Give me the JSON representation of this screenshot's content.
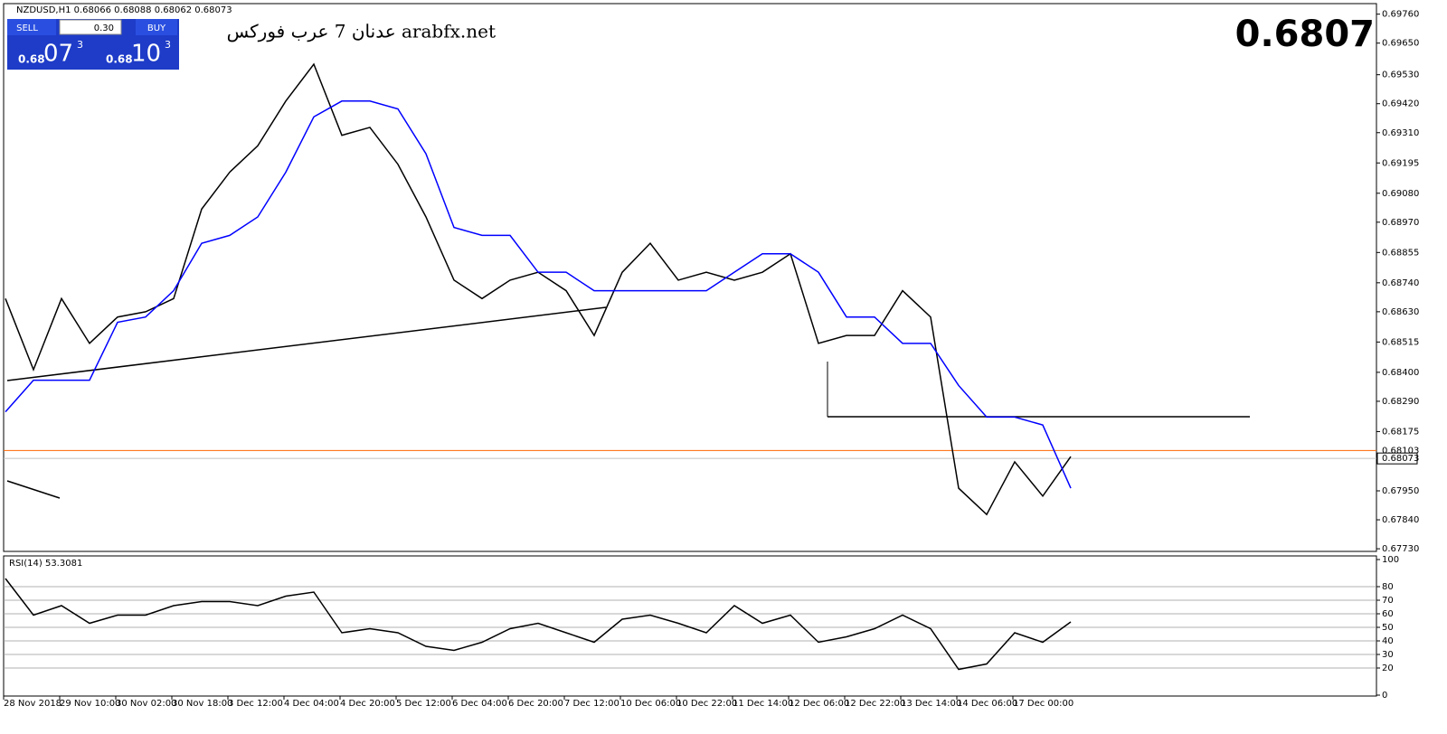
{
  "header": {
    "symbol_info": "NZDUSD,H1  0.68066 0.68088 0.68062 0.68073"
  },
  "trade_panel": {
    "sell": "SELL",
    "lot": "0.30",
    "buy": "BUY",
    "sell_prefix": "0.68",
    "sell_big": "07",
    "sell_sup": "3",
    "buy_prefix": "0.68",
    "buy_big": "10",
    "buy_sup": "3"
  },
  "watermark": "عدنان 7 عرب فوركس arabfx.net",
  "big_price": "0.6807",
  "chart_data": [
    {
      "type": "line",
      "categories": [
        "28 Nov 2018",
        null,
        "29 Nov 10:00",
        null,
        "30 Nov 02:00",
        null,
        "30 Nov 18:00",
        null,
        "3 Dec 12:00",
        null,
        "4 Dec 04:00",
        null,
        "4 Dec 20:00",
        null,
        "5 Dec 12:00",
        null,
        "6 Dec 04:00",
        null,
        "6 Dec 20:00",
        null,
        "7 Dec 12:00",
        null,
        "10 Dec 06:00",
        null,
        "10 Dec 22:00",
        null,
        "11 Dec 14:00",
        null,
        "12 Dec 06:00",
        null,
        "12 Dec 22:00",
        null,
        "13 Dec 14:00",
        null,
        "14 Dec 06:00",
        null,
        "17 Dec 00:00",
        null,
        null
      ],
      "series": [
        {
          "color": "#000000",
          "values": [
            0.6868,
            0.6841,
            0.6868,
            0.6851,
            0.6861,
            0.6863,
            0.6868,
            0.6902,
            0.6916,
            0.6926,
            0.6943,
            0.6957,
            0.693,
            0.6933,
            0.6919,
            0.6899,
            0.6875,
            0.6868,
            0.6875,
            0.6878,
            0.6871,
            0.6854,
            0.6878,
            0.6889,
            0.6875,
            0.6878,
            0.6875,
            0.6878,
            0.6885,
            0.6851,
            0.6854,
            0.6854,
            0.6871,
            0.6861,
            0.6796,
            0.6786,
            0.6806,
            0.6793,
            0.6808
          ]
        },
        {
          "color": "#0000ff",
          "values": [
            0.6825,
            0.6837,
            0.6837,
            0.6837,
            0.6859,
            0.6861,
            0.6871,
            0.6889,
            0.6892,
            0.6899,
            0.6916,
            0.6937,
            0.6943,
            0.6943,
            0.694,
            0.6923,
            0.6895,
            0.6892,
            0.6892,
            0.6878,
            0.6878,
            0.6871,
            0.6871,
            0.6871,
            0.6871,
            0.6871,
            0.6878,
            0.6885,
            0.6885,
            0.6878,
            0.6861,
            0.6861,
            0.6851,
            0.6851,
            0.6835,
            0.6823,
            0.6823,
            0.682,
            0.6796
          ]
        }
      ],
      "ylim": [
        0.6772,
        0.698
      ],
      "yticks": [
        {
          "value": 0.6976,
          "label": "0.69760"
        },
        {
          "value": 0.6965,
          "label": "0.69650"
        },
        {
          "value": 0.6953,
          "label": "0.69530"
        },
        {
          "value": 0.6942,
          "label": "0.69420"
        },
        {
          "value": 0.6931,
          "label": "0.69310"
        },
        {
          "value": 0.69195,
          "label": "0.69195"
        },
        {
          "value": 0.6908,
          "label": "0.69080"
        },
        {
          "value": 0.6897,
          "label": "0.68970"
        },
        {
          "value": 0.68855,
          "label": "0.68855"
        },
        {
          "value": 0.6874,
          "label": "0.68740"
        },
        {
          "value": 0.6863,
          "label": "0.68630"
        },
        {
          "value": 0.68515,
          "label": "0.68515"
        },
        {
          "value": 0.684,
          "label": "0.68400"
        },
        {
          "value": 0.6829,
          "label": "0.68290"
        },
        {
          "value": 0.68175,
          "label": "0.68175"
        },
        {
          "value": 0.6795,
          "label": "0.67950"
        },
        {
          "value": 0.6784,
          "label": "0.67840"
        },
        {
          "value": 0.6773,
          "label": "0.67730"
        }
      ],
      "price_lines": [
        {
          "value": 0.68103,
          "label": "0.68103",
          "color": "#ff6600"
        },
        {
          "value": 0.68073,
          "label": "0.68073",
          "color": "#c0c0c0"
        }
      ]
    },
    {
      "type": "line",
      "title": "RSI(14) 53.3081",
      "series": [
        {
          "color": "#000000",
          "values": [
            86,
            59,
            66,
            53,
            59,
            59,
            66,
            69,
            69,
            66,
            73,
            76,
            46,
            49,
            46,
            36,
            33,
            39,
            49,
            53,
            46,
            39,
            56,
            59,
            53,
            46,
            66,
            53,
            59,
            39,
            43,
            49,
            59,
            49,
            19,
            23,
            46,
            39,
            54
          ]
        }
      ],
      "ylim": [
        0,
        100
      ],
      "yticks": [
        100,
        80,
        70,
        60,
        50,
        40,
        30,
        20,
        0
      ]
    }
  ]
}
